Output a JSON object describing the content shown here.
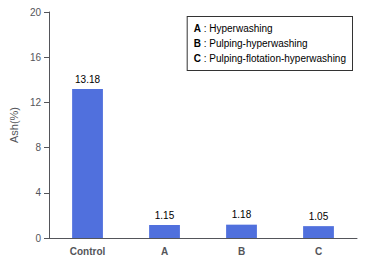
{
  "chart_data": {
    "type": "bar",
    "categories": [
      "Control",
      "A",
      "B",
      "C"
    ],
    "values": [
      13.18,
      1.15,
      1.18,
      1.05
    ],
    "ylabel": "Ash(%)",
    "ylim": [
      0,
      20
    ],
    "yticks": [
      0,
      4,
      8,
      12,
      16,
      20
    ],
    "annotations": [
      "A : Hyperwashing",
      "B : Pulping-hyperwashing",
      "C : Pulping-flotation-hyperwashing"
    ],
    "data_labels": true,
    "grid": false
  }
}
